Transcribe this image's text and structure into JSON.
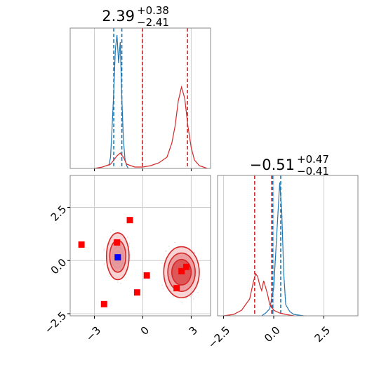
{
  "chart_data": [
    {
      "type": "histogram",
      "panel": "top-left marginal",
      "title": {
        "value": "2.39",
        "upper": "+0.38",
        "lower": "−2.41"
      },
      "xlim": [
        -4.5,
        4.2
      ],
      "grid": true,
      "series": [
        {
          "color": "#1f77b4",
          "x": [
            -2.1,
            -2.0,
            -1.9,
            -1.8,
            -1.7,
            -1.6,
            -1.5,
            -1.4,
            -1.3,
            -1.2,
            -1.1,
            -1.0,
            -0.9
          ],
          "y": [
            0.02,
            0.08,
            0.3,
            0.55,
            0.85,
            0.95,
            0.75,
            0.9,
            0.5,
            0.2,
            0.06,
            0.02,
            0.0
          ],
          "quantiles": [
            -1.8,
            -1.3
          ]
        },
        {
          "color": "#d62728",
          "x": [
            -3.0,
            -2.5,
            -2.0,
            -1.8,
            -1.6,
            -1.4,
            -1.2,
            -1.0,
            -0.5,
            0.0,
            0.5,
            1.0,
            1.5,
            1.8,
            2.0,
            2.2,
            2.4,
            2.6,
            2.8,
            3.0,
            3.2,
            3.5,
            4.0
          ],
          "y": [
            0.0,
            0.01,
            0.03,
            0.06,
            0.09,
            0.11,
            0.08,
            0.03,
            0.01,
            0.01,
            0.02,
            0.04,
            0.08,
            0.18,
            0.3,
            0.48,
            0.58,
            0.5,
            0.3,
            0.15,
            0.06,
            0.02,
            0.0
          ],
          "quantiles": [
            -0.02,
            2.77
          ]
        }
      ]
    },
    {
      "type": "histogram",
      "panel": "bottom-right marginal",
      "title": {
        "value": "−0.51",
        "upper": "+0.47",
        "lower": "−0.41"
      },
      "xlim": [
        -2.8,
        4.2
      ],
      "xticks": [
        -2.5,
        0.0,
        2.5
      ],
      "xtick_labels": [
        "−2.5",
        "0.0",
        "2.5"
      ],
      "grid": true,
      "series": [
        {
          "color": "#1f77b4",
          "x": [
            -0.6,
            -0.4,
            -0.2,
            0.0,
            0.1,
            0.2,
            0.3,
            0.4,
            0.5,
            0.6,
            0.8,
            1.0,
            1.5
          ],
          "y": [
            0.0,
            0.02,
            0.05,
            0.2,
            0.45,
            0.7,
            0.95,
            0.75,
            0.3,
            0.08,
            0.03,
            0.01,
            0.0
          ],
          "quantiles": [
            -0.05,
            0.35
          ]
        },
        {
          "color": "#d62728",
          "x": [
            -2.5,
            -2.0,
            -1.6,
            -1.4,
            -1.2,
            -1.0,
            -0.9,
            -0.8,
            -0.7,
            -0.6,
            -0.5,
            -0.4,
            -0.3,
            -0.2,
            0.0,
            0.3,
            0.6,
            1.0
          ],
          "y": [
            0.0,
            0.01,
            0.04,
            0.08,
            0.12,
            0.25,
            0.3,
            0.28,
            0.22,
            0.18,
            0.25,
            0.2,
            0.15,
            0.08,
            0.04,
            0.02,
            0.01,
            0.0
          ],
          "quantiles": [
            -0.95,
            -0.1
          ]
        }
      ]
    },
    {
      "type": "scatter",
      "panel": "bottom-left joint",
      "xlim": [
        -4.5,
        4.2
      ],
      "ylim": [
        -2.6,
        4.0
      ],
      "xticks": [
        -3,
        0,
        3
      ],
      "xtick_labels": [
        "−3",
        "0",
        "3"
      ],
      "yticks": [
        -2.5,
        0.0,
        2.5
      ],
      "ytick_labels": [
        "−2.5",
        "0.0",
        "2.5"
      ],
      "grid": true,
      "contours": [
        {
          "color": "#1f77b4",
          "center": [
            -1.55,
            0.15
          ],
          "radii": [
            [
              0.35,
              0.5
            ],
            [
              0.22,
              0.3
            ],
            [
              0.12,
              0.15
            ]
          ]
        },
        {
          "color": "#d62728",
          "center": [
            -1.55,
            0.2
          ],
          "radii": [
            [
              0.7,
              1.1
            ],
            [
              0.5,
              0.75
            ]
          ]
        },
        {
          "color": "#d62728",
          "center": [
            2.4,
            -0.55
          ],
          "radii": [
            [
              1.1,
              1.2
            ],
            [
              0.85,
              0.9
            ],
            [
              0.6,
              0.6
            ]
          ]
        }
      ],
      "red_points": [
        [
          -3.8,
          0.75
        ],
        [
          -1.6,
          0.85
        ],
        [
          -0.8,
          1.9
        ],
        [
          -2.4,
          -2.05
        ],
        [
          -0.35,
          -1.5
        ],
        [
          0.25,
          -0.7
        ],
        [
          2.1,
          -1.3
        ],
        [
          2.4,
          -0.5
        ],
        [
          2.7,
          -0.3
        ]
      ],
      "blue_points": [
        [
          -1.55,
          0.15
        ]
      ]
    }
  ]
}
